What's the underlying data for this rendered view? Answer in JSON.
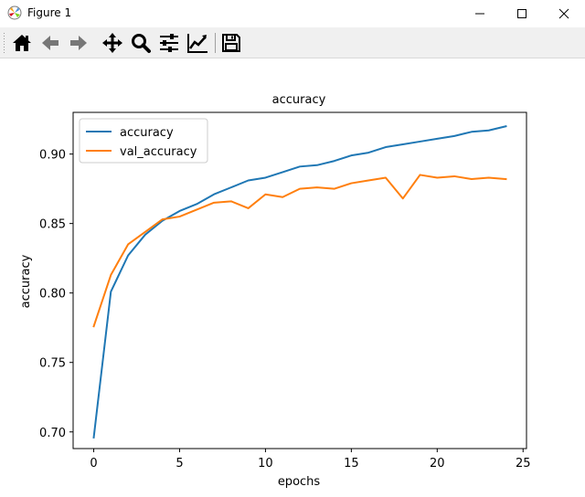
{
  "window": {
    "title": "Figure 1",
    "app_icon": "matplotlib-logo-icon",
    "controls": [
      "minimize-icon",
      "maximize-icon",
      "close-icon"
    ]
  },
  "toolbar": {
    "tools": [
      {
        "name": "home",
        "icon": "home-icon"
      },
      {
        "name": "back",
        "icon": "arrow-left-icon"
      },
      {
        "name": "forward",
        "icon": "arrow-right-icon"
      },
      {
        "name": "pan",
        "icon": "move-icon"
      },
      {
        "name": "zoom",
        "icon": "magnifier-icon"
      },
      {
        "name": "subplots",
        "icon": "sliders-icon"
      },
      {
        "name": "customize",
        "icon": "line-chart-edit-icon"
      },
      {
        "name": "save",
        "icon": "floppy-disk-icon"
      }
    ]
  },
  "chart_data": {
    "type": "line",
    "title": "accuracy",
    "xlabel": "epochs",
    "ylabel": "accuracy",
    "xlim": [
      -1.2,
      25.2
    ],
    "ylim": [
      0.688,
      0.93
    ],
    "xticks": [
      "0",
      "5",
      "10",
      "15",
      "20",
      "25"
    ],
    "xtick_values": [
      0,
      5,
      10,
      15,
      20,
      25
    ],
    "yticks": [
      "0.70",
      "0.75",
      "0.80",
      "0.85",
      "0.90"
    ],
    "ytick_values": [
      0.7,
      0.75,
      0.8,
      0.85,
      0.9
    ],
    "grid": false,
    "legend_position": "upper left",
    "x": [
      0,
      1,
      2,
      3,
      4,
      5,
      6,
      7,
      8,
      9,
      10,
      11,
      12,
      13,
      14,
      15,
      16,
      17,
      18,
      19,
      20,
      21,
      22,
      23,
      24
    ],
    "series": [
      {
        "name": "accuracy",
        "color": "#1f77b4",
        "values": [
          0.696,
          0.801,
          0.827,
          0.842,
          0.852,
          0.859,
          0.864,
          0.871,
          0.876,
          0.881,
          0.883,
          0.887,
          0.891,
          0.892,
          0.895,
          0.899,
          0.901,
          0.905,
          0.907,
          0.909,
          0.911,
          0.913,
          0.916,
          0.917,
          0.92
        ]
      },
      {
        "name": "val_accuracy",
        "color": "#ff7f0e",
        "values": [
          0.776,
          0.813,
          0.835,
          0.844,
          0.853,
          0.855,
          0.86,
          0.865,
          0.866,
          0.861,
          0.871,
          0.869,
          0.875,
          0.876,
          0.875,
          0.879,
          0.881,
          0.883,
          0.868,
          0.885,
          0.883,
          0.884,
          0.882,
          0.883,
          0.882
        ]
      }
    ]
  }
}
